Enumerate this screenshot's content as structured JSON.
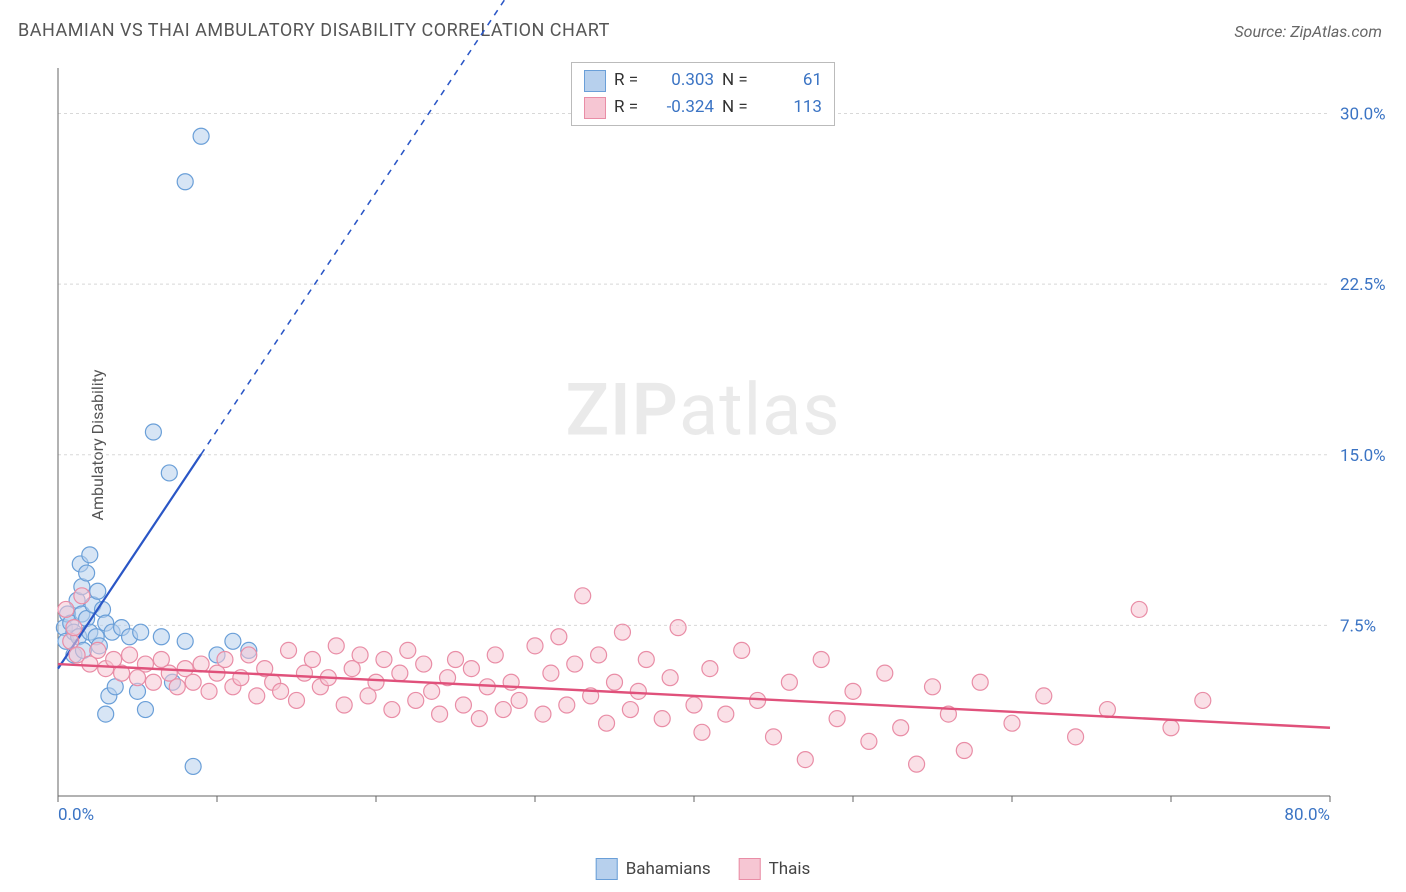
{
  "title": "BAHAMIAN VS THAI AMBULATORY DISABILITY CORRELATION CHART",
  "source_label": "Source: ZipAtlas.com",
  "ylabel": "Ambulatory Disability",
  "watermark": {
    "bold": "ZIP",
    "rest": "atlas"
  },
  "chart": {
    "type": "scatter",
    "background_color": "#ffffff",
    "grid_color": "#d8d8d8",
    "grid_dash": "3,3",
    "axis_color": "#666666",
    "xlim": [
      0,
      80
    ],
    "ylim": [
      0,
      32
    ],
    "x_ticks": [
      0,
      10,
      20,
      30,
      40,
      50,
      60,
      70,
      80
    ],
    "x_tick_labels_shown": {
      "0": "0.0%",
      "80": "80.0%"
    },
    "y_ticks": [
      7.5,
      15.0,
      22.5,
      30.0
    ],
    "y_tick_labels": [
      "7.5%",
      "15.0%",
      "22.5%",
      "30.0%"
    ],
    "tick_label_color": "#3b74c4",
    "tick_label_fontsize": 17,
    "marker_radius": 8,
    "marker_opacity": 0.55,
    "series": [
      {
        "name": "Bahamians",
        "color_fill": "#b7d0ed",
        "color_stroke": "#6a9fd8",
        "trend_color": "#2a56c6",
        "trend_width": 2.2,
        "trend_dashed_after_x": 9,
        "R": 0.303,
        "N": 61,
        "trend": {
          "x1": 0,
          "y1": 5.6,
          "x2": 30,
          "y2": 37
        },
        "points": [
          [
            0.4,
            7.4
          ],
          [
            0.5,
            6.8
          ],
          [
            0.6,
            8.0
          ],
          [
            0.8,
            7.6
          ],
          [
            1.0,
            6.2
          ],
          [
            1.0,
            7.2
          ],
          [
            1.2,
            8.6
          ],
          [
            1.3,
            7.0
          ],
          [
            1.4,
            10.2
          ],
          [
            1.5,
            9.2
          ],
          [
            1.5,
            8.0
          ],
          [
            1.6,
            6.4
          ],
          [
            1.8,
            9.8
          ],
          [
            1.8,
            7.8
          ],
          [
            2.0,
            10.6
          ],
          [
            2.0,
            7.2
          ],
          [
            2.2,
            8.4
          ],
          [
            2.4,
            7.0
          ],
          [
            2.5,
            9.0
          ],
          [
            2.6,
            6.6
          ],
          [
            2.8,
            8.2
          ],
          [
            3.0,
            7.6
          ],
          [
            3.0,
            3.6
          ],
          [
            3.2,
            4.4
          ],
          [
            3.4,
            7.2
          ],
          [
            3.6,
            4.8
          ],
          [
            4.0,
            7.4
          ],
          [
            4.5,
            7.0
          ],
          [
            5.0,
            4.6
          ],
          [
            5.2,
            7.2
          ],
          [
            5.5,
            3.8
          ],
          [
            6.0,
            16.0
          ],
          [
            6.5,
            7.0
          ],
          [
            7.0,
            14.2
          ],
          [
            7.2,
            5.0
          ],
          [
            8.0,
            6.8
          ],
          [
            8.5,
            1.3
          ],
          [
            9.0,
            29.0
          ],
          [
            8.0,
            27.0
          ],
          [
            10.0,
            6.2
          ],
          [
            11.0,
            6.8
          ],
          [
            12.0,
            6.4
          ]
        ]
      },
      {
        "name": "Thais",
        "color_fill": "#f6c6d3",
        "color_stroke": "#e98da6",
        "trend_color": "#e0517b",
        "trend_width": 2.4,
        "trend_dashed_after_x": 999,
        "R": -0.324,
        "N": 113,
        "trend": {
          "x1": 0,
          "y1": 5.8,
          "x2": 80,
          "y2": 3.0
        },
        "points": [
          [
            0.5,
            8.2
          ],
          [
            0.8,
            6.8
          ],
          [
            1.0,
            7.4
          ],
          [
            1.2,
            6.2
          ],
          [
            1.5,
            8.8
          ],
          [
            2.0,
            5.8
          ],
          [
            2.5,
            6.4
          ],
          [
            3.0,
            5.6
          ],
          [
            3.5,
            6.0
          ],
          [
            4.0,
            5.4
          ],
          [
            4.5,
            6.2
          ],
          [
            5.0,
            5.2
          ],
          [
            5.5,
            5.8
          ],
          [
            6.0,
            5.0
          ],
          [
            6.5,
            6.0
          ],
          [
            7.0,
            5.4
          ],
          [
            7.5,
            4.8
          ],
          [
            8.0,
            5.6
          ],
          [
            8.5,
            5.0
          ],
          [
            9.0,
            5.8
          ],
          [
            9.5,
            4.6
          ],
          [
            10.0,
            5.4
          ],
          [
            10.5,
            6.0
          ],
          [
            11.0,
            4.8
          ],
          [
            11.5,
            5.2
          ],
          [
            12.0,
            6.2
          ],
          [
            12.5,
            4.4
          ],
          [
            13.0,
            5.6
          ],
          [
            13.5,
            5.0
          ],
          [
            14.0,
            4.6
          ],
          [
            14.5,
            6.4
          ],
          [
            15.0,
            4.2
          ],
          [
            15.5,
            5.4
          ],
          [
            16.0,
            6.0
          ],
          [
            16.5,
            4.8
          ],
          [
            17.0,
            5.2
          ],
          [
            17.5,
            6.6
          ],
          [
            18.0,
            4.0
          ],
          [
            18.5,
            5.6
          ],
          [
            19.0,
            6.2
          ],
          [
            19.5,
            4.4
          ],
          [
            20.0,
            5.0
          ],
          [
            20.5,
            6.0
          ],
          [
            21.0,
            3.8
          ],
          [
            21.5,
            5.4
          ],
          [
            22.0,
            6.4
          ],
          [
            22.5,
            4.2
          ],
          [
            23.0,
            5.8
          ],
          [
            23.5,
            4.6
          ],
          [
            24.0,
            3.6
          ],
          [
            24.5,
            5.2
          ],
          [
            25.0,
            6.0
          ],
          [
            25.5,
            4.0
          ],
          [
            26.0,
            5.6
          ],
          [
            26.5,
            3.4
          ],
          [
            27.0,
            4.8
          ],
          [
            27.5,
            6.2
          ],
          [
            28.0,
            3.8
          ],
          [
            28.5,
            5.0
          ],
          [
            29.0,
            4.2
          ],
          [
            30.0,
            6.6
          ],
          [
            30.5,
            3.6
          ],
          [
            31.0,
            5.4
          ],
          [
            31.5,
            7.0
          ],
          [
            32.0,
            4.0
          ],
          [
            32.5,
            5.8
          ],
          [
            33.0,
            8.8
          ],
          [
            33.5,
            4.4
          ],
          [
            34.0,
            6.2
          ],
          [
            34.5,
            3.2
          ],
          [
            35.0,
            5.0
          ],
          [
            35.5,
            7.2
          ],
          [
            36.0,
            3.8
          ],
          [
            36.5,
            4.6
          ],
          [
            37.0,
            6.0
          ],
          [
            38.0,
            3.4
          ],
          [
            38.5,
            5.2
          ],
          [
            39.0,
            7.4
          ],
          [
            40.0,
            4.0
          ],
          [
            40.5,
            2.8
          ],
          [
            41.0,
            5.6
          ],
          [
            42.0,
            3.6
          ],
          [
            43.0,
            6.4
          ],
          [
            44.0,
            4.2
          ],
          [
            45.0,
            2.6
          ],
          [
            46.0,
            5.0
          ],
          [
            47.0,
            1.6
          ],
          [
            48.0,
            6.0
          ],
          [
            49.0,
            3.4
          ],
          [
            50.0,
            4.6
          ],
          [
            51.0,
            2.4
          ],
          [
            52.0,
            5.4
          ],
          [
            53.0,
            3.0
          ],
          [
            54.0,
            1.4
          ],
          [
            55.0,
            4.8
          ],
          [
            56.0,
            3.6
          ],
          [
            57.0,
            2.0
          ],
          [
            58.0,
            5.0
          ],
          [
            60.0,
            3.2
          ],
          [
            62.0,
            4.4
          ],
          [
            64.0,
            2.6
          ],
          [
            66.0,
            3.8
          ],
          [
            68.0,
            8.2
          ],
          [
            70.0,
            3.0
          ],
          [
            72.0,
            4.2
          ]
        ]
      }
    ]
  },
  "legend_top": {
    "R_label": "R =",
    "N_label": "N ="
  },
  "legend_bottom": {
    "items": [
      "Bahamians",
      "Thais"
    ]
  }
}
